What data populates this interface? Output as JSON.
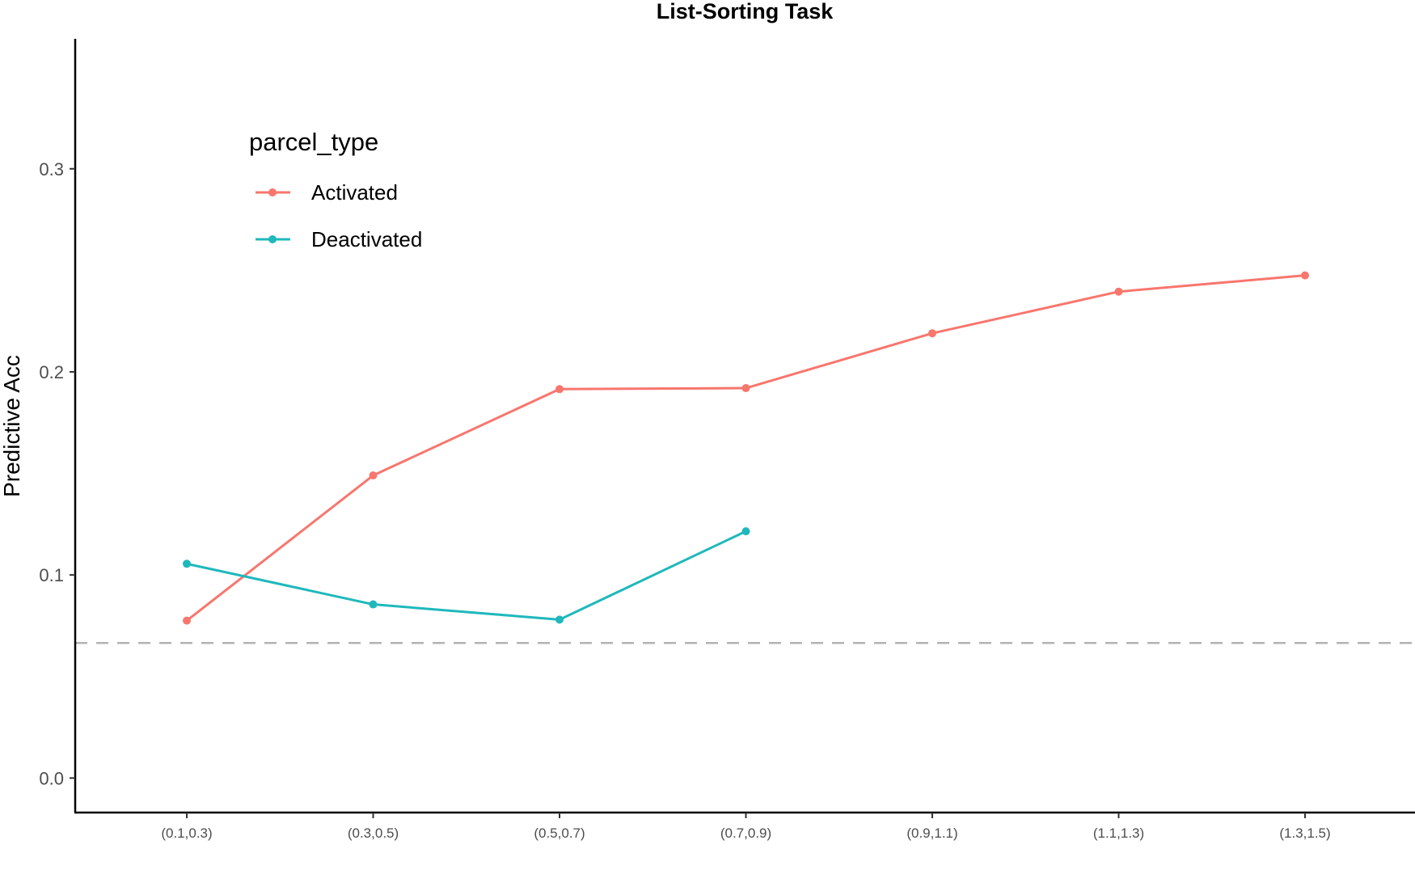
{
  "chart_data": {
    "type": "line",
    "title": "List-Sorting Task",
    "xlabel": "",
    "ylabel": "Predictive Acc",
    "categories": [
      "(0.1,0.3)",
      "(0.3,0.5)",
      "(0.5,0.7)",
      "(0.7,0.9)",
      "(0.9,1.1)",
      "(1.1,1.3)",
      "(1.3,1.5)"
    ],
    "y_ticks": [
      "0.0",
      "0.1",
      "0.2",
      "0.3"
    ],
    "ylim": [
      -0.017,
      0.364
    ],
    "grid": false,
    "legend": {
      "title": "parcel_type",
      "position": "top-left"
    },
    "reference_line": {
      "y": 0.0665,
      "style": "dashed",
      "color": "#b3b3b3"
    },
    "series": [
      {
        "name": "Activated",
        "color": "#F8766D",
        "values": [
          0.0775,
          0.149,
          0.1915,
          0.192,
          0.219,
          0.2395,
          0.2475
        ]
      },
      {
        "name": "Deactivated",
        "color": "#1FB8BC",
        "values": [
          0.1055,
          0.0855,
          0.078,
          0.1215,
          null,
          null,
          null
        ]
      }
    ]
  }
}
